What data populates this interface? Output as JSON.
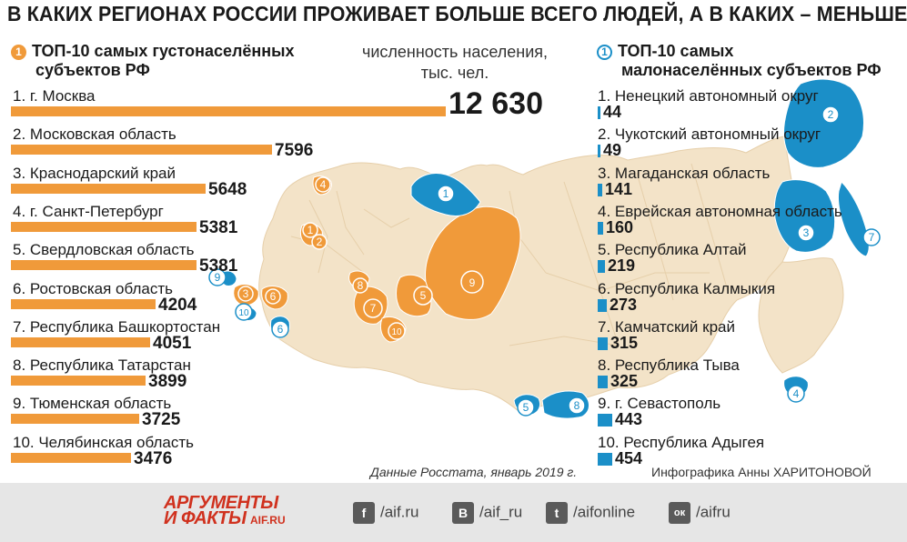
{
  "title": "В КАКИХ РЕГИОНАХ РОССИИ ПРОЖИВАЕТ БОЛЬШЕ ВСЕГО ЛЮДЕЙ, А В КАКИХ – МЕНЬШЕ?",
  "left_section": {
    "badge": "1",
    "title_line1": "ТОП-10 самых густонаселённых",
    "title_line2": "субъектов РФ"
  },
  "unit_line1": "численность населения,",
  "unit_line2": "тыс. чел.",
  "right_section": {
    "badge": "1",
    "title_line1": "ТОП-10 самых",
    "title_line2": "малонаселённых субъектов РФ"
  },
  "source_note": "Данные Росстата, январь 2019 г.",
  "credit": "Инфографика Анны ХАРИТОНОВОЙ",
  "colors": {
    "orange": "#f09a3a",
    "blue": "#1b8fc8",
    "map_beige": "#f3e3c8",
    "footer_bg": "#e6e6e6"
  },
  "footer": {
    "logo_line1": "АРГУМЕНТЫ",
    "logo_line2": "И ФАКТЫ",
    "logo_url": "AIF.RU",
    "social": [
      {
        "icon": "facebook-icon",
        "glyph": "f",
        "handle": "/aif.ru"
      },
      {
        "icon": "vk-icon",
        "glyph": "В",
        "handle": "/aif_ru"
      },
      {
        "icon": "twitter-icon",
        "glyph": "t",
        "handle": "/aifonline"
      },
      {
        "icon": "odnoklassniki-icon",
        "glyph": "ок",
        "handle": "/aifru"
      }
    ]
  },
  "map_labels": {
    "orange": [
      "1",
      "2",
      "3",
      "4",
      "5",
      "6",
      "7",
      "8",
      "9",
      "10"
    ],
    "blue": [
      "1",
      "2",
      "3",
      "4",
      "5",
      "6",
      "7",
      "8",
      "9",
      "10"
    ]
  },
  "chart_data": [
    {
      "type": "bar",
      "orientation": "horizontal",
      "categories": [
        "1. г. Москва",
        "2. Московская область",
        "3. Краснодарский край",
        "4. г. Санкт-Петербург",
        "5. Свердловская область",
        "6. Ростовская область",
        "7. Республика Башкортостан",
        "8. Республика Татарстан",
        "9. Тюменская область",
        "10. Челябинская область"
      ],
      "values": [
        12630,
        7596,
        5648,
        5381,
        5381,
        4204,
        4051,
        3899,
        3725,
        3476
      ],
      "value_labels": [
        "12 630",
        "7596",
        "5648",
        "5381",
        "5381",
        "4204",
        "4051",
        "3899",
        "3725",
        "3476"
      ],
      "color": "#f09a3a"
    },
    {
      "type": "bar",
      "orientation": "horizontal",
      "categories": [
        "1. Ненецкий автономный округ",
        "2. Чукотский автономный округ",
        "3. Магаданская область",
        "4. Еврейская автономная область",
        "5. Республика Алтай",
        "6. Республика Калмыкия",
        "7. Камчатский край",
        "8. Республика Тыва",
        "9. г. Севастополь",
        "10. Республика Адыгея"
      ],
      "values": [
        44,
        49,
        141,
        160,
        219,
        273,
        315,
        325,
        443,
        454
      ],
      "value_labels": [
        "44",
        "49",
        "141",
        "160",
        "219",
        "273",
        "315",
        "325",
        "443",
        "454"
      ],
      "color": "#1b8fc8"
    }
  ]
}
